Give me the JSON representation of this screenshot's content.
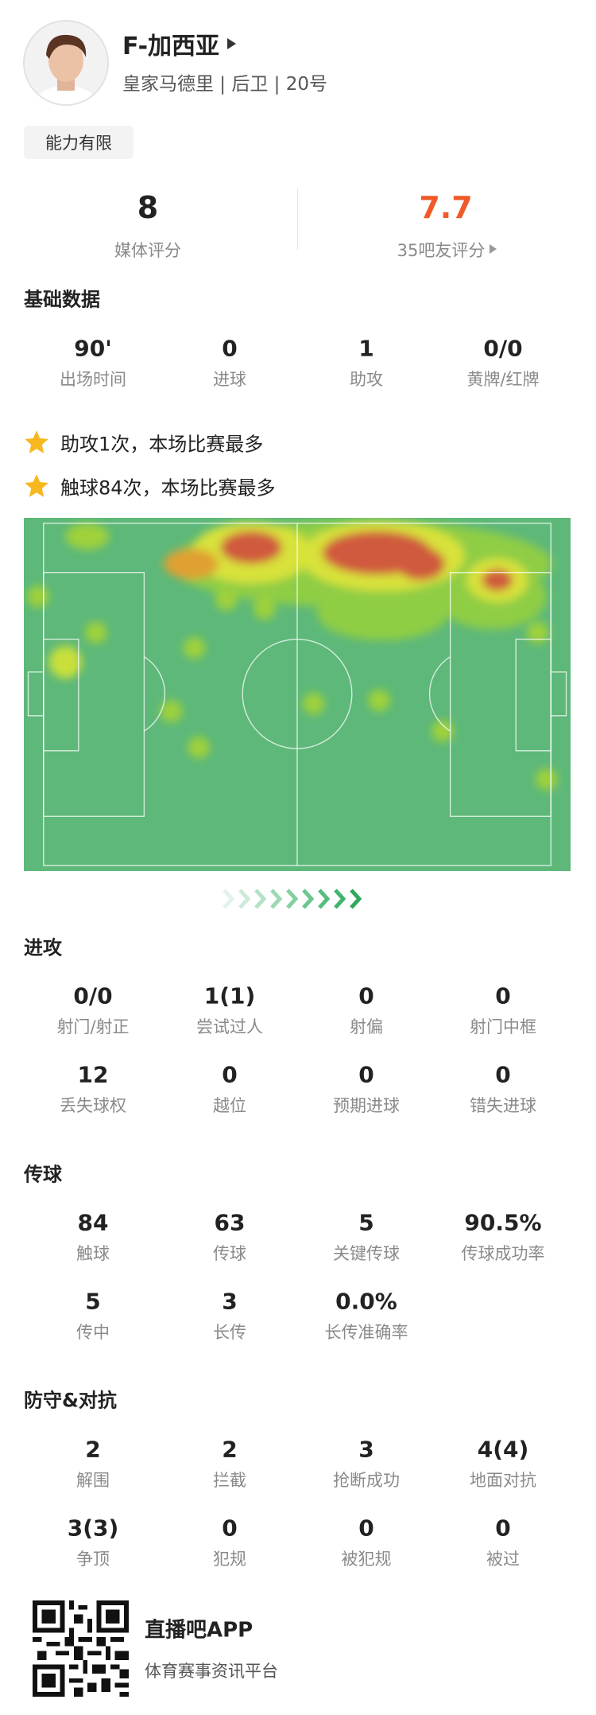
{
  "player": {
    "name": "F-加西亚",
    "subtitle": "皇家马德里 | 后卫 | 20号",
    "tag": "能力有限"
  },
  "ratings": [
    {
      "value": "8",
      "label": "媒体评分"
    },
    {
      "value": "7.7",
      "label": "35吧友评分"
    }
  ],
  "sections": [
    {
      "title": "基础数据",
      "stats": [
        {
          "value": "90'",
          "label": "出场时间"
        },
        {
          "value": "0",
          "label": "进球"
        },
        {
          "value": "1",
          "label": "助攻"
        },
        {
          "value": "0/0",
          "label": "黄牌/红牌"
        }
      ]
    },
    {
      "title": "进攻",
      "stats": [
        {
          "value": "0/0",
          "label": "射门/射正"
        },
        {
          "value": "1(1)",
          "label": "尝试过人"
        },
        {
          "value": "0",
          "label": "射偏"
        },
        {
          "value": "0",
          "label": "射门中框"
        },
        {
          "value": "12",
          "label": "丢失球权"
        },
        {
          "value": "0",
          "label": "越位"
        },
        {
          "value": "0",
          "label": "预期进球"
        },
        {
          "value": "0",
          "label": "错失进球"
        }
      ]
    },
    {
      "title": "传球",
      "stats": [
        {
          "value": "84",
          "label": "触球"
        },
        {
          "value": "63",
          "label": "传球"
        },
        {
          "value": "5",
          "label": "关键传球"
        },
        {
          "value": "90.5%",
          "label": "传球成功率"
        },
        {
          "value": "5",
          "label": "传中"
        },
        {
          "value": "3",
          "label": "长传"
        },
        {
          "value": "0.0%",
          "label": "长传准确率"
        }
      ]
    },
    {
      "title": "防守&对抗",
      "stats": [
        {
          "value": "2",
          "label": "解围"
        },
        {
          "value": "2",
          "label": "拦截"
        },
        {
          "value": "3",
          "label": "抢断成功"
        },
        {
          "value": "4(4)",
          "label": "地面对抗"
        },
        {
          "value": "3(3)",
          "label": "争顶"
        },
        {
          "value": "0",
          "label": "犯规"
        },
        {
          "value": "0",
          "label": "被犯规"
        },
        {
          "value": "0",
          "label": "被过"
        }
      ]
    }
  ],
  "highlights": [
    "助攻1次，本场比赛最多",
    "触球84次，本场比赛最多"
  ],
  "footer": {
    "app": "直播吧APP",
    "slogan": "体育赛事资讯平台"
  }
}
